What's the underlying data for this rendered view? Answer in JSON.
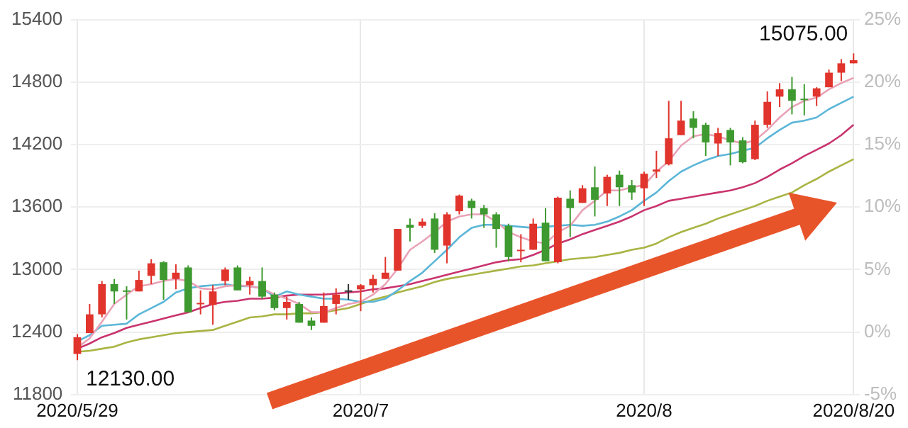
{
  "chart_data": {
    "type": "candlestick",
    "categories": [
      "2020/5/29",
      null,
      null,
      null,
      null,
      null,
      null,
      null,
      null,
      null,
      null,
      null,
      null,
      null,
      null,
      null,
      null,
      null,
      null,
      null,
      null,
      null,
      null,
      "2020/7",
      null,
      null,
      null,
      null,
      null,
      null,
      null,
      null,
      null,
      null,
      null,
      null,
      null,
      null,
      null,
      null,
      null,
      null,
      null,
      null,
      null,
      null,
      "2020/8",
      null,
      null,
      null,
      null,
      null,
      null,
      null,
      null,
      null,
      null,
      null,
      null,
      null,
      null,
      null,
      null,
      "2020/8/20"
    ],
    "ohlc": [
      [
        12190,
        12380,
        12130,
        12350
      ],
      [
        12390,
        12670,
        12390,
        12570
      ],
      [
        12570,
        12890,
        12540,
        12860
      ],
      [
        12860,
        12910,
        12670,
        12790
      ],
      [
        12800,
        12840,
        12520,
        12790
      ],
      [
        12790,
        12990,
        12790,
        12900
      ],
      [
        12940,
        13100,
        12860,
        13060
      ],
      [
        13070,
        13080,
        12710,
        12900
      ],
      [
        12910,
        13050,
        12810,
        12970
      ],
      [
        13020,
        13040,
        12590,
        12590
      ],
      [
        12670,
        12800,
        12570,
        12680
      ],
      [
        12660,
        12850,
        12470,
        12790
      ],
      [
        12890,
        13020,
        12850,
        13000
      ],
      [
        13020,
        13040,
        12800,
        12800
      ],
      [
        12850,
        12930,
        12760,
        12890
      ],
      [
        12890,
        13020,
        12720,
        12740
      ],
      [
        12760,
        12780,
        12610,
        12630
      ],
      [
        12630,
        12740,
        12520,
        12690
      ],
      [
        12670,
        12690,
        12490,
        12490
      ],
      [
        12510,
        12540,
        12420,
        12460
      ],
      [
        12490,
        12780,
        12490,
        12650
      ],
      [
        12670,
        12820,
        12570,
        12760
      ],
      [
        12800,
        12860,
        12710,
        12800
      ],
      [
        12810,
        12860,
        12600,
        12850
      ],
      [
        12850,
        12950,
        12780,
        12910
      ],
      [
        12910,
        13120,
        12910,
        12970
      ],
      [
        12990,
        13390,
        12990,
        13390
      ],
      [
        13430,
        13490,
        13270,
        13400
      ],
      [
        13420,
        13490,
        13400,
        13460
      ],
      [
        13490,
        13540,
        13160,
        13190
      ],
      [
        13230,
        13550,
        13060,
        13530
      ],
      [
        13560,
        13720,
        13530,
        13710
      ],
      [
        13660,
        13680,
        13490,
        13590
      ],
      [
        13590,
        13620,
        13400,
        13530
      ],
      [
        13530,
        13550,
        13210,
        13390
      ],
      [
        13420,
        13440,
        13080,
        13120
      ],
      [
        13180,
        13340,
        13070,
        13190
      ],
      [
        13190,
        13490,
        13190,
        13440
      ],
      [
        13450,
        13590,
        13080,
        13080
      ],
      [
        13070,
        13700,
        13060,
        13690
      ],
      [
        13680,
        13760,
        13310,
        13590
      ],
      [
        13640,
        13810,
        13640,
        13780
      ],
      [
        13790,
        13990,
        13510,
        13670
      ],
      [
        13730,
        13910,
        13610,
        13890
      ],
      [
        13910,
        13950,
        13610,
        13790
      ],
      [
        13810,
        13860,
        13670,
        13740
      ],
      [
        13780,
        13940,
        13610,
        13920
      ],
      [
        13940,
        14140,
        13880,
        13960
      ],
      [
        14010,
        14620,
        14000,
        14260
      ],
      [
        14290,
        14620,
        14290,
        14430
      ],
      [
        14450,
        14520,
        14260,
        14360
      ],
      [
        14390,
        14410,
        14090,
        14220
      ],
      [
        14210,
        14360,
        14090,
        14310
      ],
      [
        14340,
        14360,
        14000,
        14220
      ],
      [
        14240,
        14270,
        14020,
        14030
      ],
      [
        14060,
        14430,
        14050,
        14390
      ],
      [
        14390,
        14710,
        14360,
        14610
      ],
      [
        14660,
        14790,
        14560,
        14730
      ],
      [
        14730,
        14850,
        14490,
        14620
      ],
      [
        14640,
        14780,
        14480,
        14630
      ],
      [
        14660,
        14750,
        14570,
        14740
      ],
      [
        14750,
        14920,
        14750,
        14890
      ],
      [
        14890,
        15020,
        14810,
        14980
      ],
      [
        14980,
        15075,
        14980,
        15010
      ]
    ],
    "colors": [
      "#e0342c",
      "#e0342c",
      "#e0342c",
      "#3e9a30",
      "#3e9a30",
      "#e0342c",
      "#e0342c",
      "#3e9a30",
      "#e0342c",
      "#3e9a30",
      "#e0342c",
      "#e0342c",
      "#e0342c",
      "#3e9a30",
      "#e0342c",
      "#3e9a30",
      "#3e9a30",
      "#e0342c",
      "#3e9a30",
      "#3e9a30",
      "#e0342c",
      "#e0342c",
      "#333333",
      "#e0342c",
      "#e0342c",
      "#e0342c",
      "#e0342c",
      "#3e9a30",
      "#e0342c",
      "#3e9a30",
      "#e0342c",
      "#e0342c",
      "#3e9a30",
      "#3e9a30",
      "#3e9a30",
      "#3e9a30",
      "#e0342c",
      "#e0342c",
      "#3e9a30",
      "#e0342c",
      "#3e9a30",
      "#e0342c",
      "#3e9a30",
      "#e0342c",
      "#3e9a30",
      "#3e9a30",
      "#e0342c",
      "#e0342c",
      "#e0342c",
      "#e0342c",
      "#3e9a30",
      "#3e9a30",
      "#e0342c",
      "#3e9a30",
      "#3e9a30",
      "#e0342c",
      "#e0342c",
      "#e0342c",
      "#3e9a30",
      "#3e9a30",
      "#e0342c",
      "#e0342c",
      "#e0342c",
      "#e0342c"
    ],
    "series": [
      {
        "type": "line",
        "color": "#e9a3b6",
        "values": [
          12250,
          12340,
          12500,
          12670,
          12760,
          12840,
          12860,
          12890,
          12910,
          12890,
          12820,
          12810,
          12840,
          12850,
          12840,
          12820,
          12760,
          12720,
          12670,
          12590,
          12590,
          12630,
          12670,
          12690,
          12760,
          12860,
          13010,
          13190,
          13270,
          13360,
          13460,
          13510,
          13530,
          13530,
          13460,
          13360,
          13310,
          13270,
          13250,
          13360,
          13420,
          13570,
          13660,
          13760,
          13760,
          13790,
          13810,
          13940,
          14040,
          14190,
          14280,
          14300,
          14280,
          14240,
          14210,
          14240,
          14340,
          14460,
          14560,
          14620,
          14650,
          14730,
          14790,
          14840
        ]
      },
      {
        "type": "line",
        "color": "#5cb6d8",
        "values": [
          12310,
          12370,
          12460,
          12470,
          12480,
          12570,
          12630,
          12690,
          12780,
          12820,
          12840,
          12850,
          12860,
          12840,
          12840,
          12820,
          12740,
          12790,
          12760,
          12740,
          12720,
          12720,
          12710,
          12690,
          12690,
          12720,
          12800,
          12890,
          12970,
          13080,
          13190,
          13310,
          13400,
          13430,
          13430,
          13420,
          13410,
          13400,
          13410,
          13420,
          13430,
          13420,
          13430,
          13460,
          13510,
          13570,
          13660,
          13740,
          13850,
          13940,
          14000,
          14050,
          14090,
          14110,
          14140,
          14170,
          14260,
          14340,
          14410,
          14430,
          14460,
          14540,
          14600,
          14660
        ]
      },
      {
        "type": "line",
        "color": "#c9346e",
        "values": [
          12240,
          12290,
          12350,
          12390,
          12440,
          12470,
          12500,
          12530,
          12560,
          12590,
          12630,
          12670,
          12690,
          12700,
          12720,
          12720,
          12730,
          12750,
          12760,
          12760,
          12760,
          12770,
          12780,
          12790,
          12810,
          12820,
          12840,
          12860,
          12890,
          12920,
          12950,
          12980,
          13010,
          13040,
          13070,
          13090,
          13100,
          13140,
          13190,
          13250,
          13290,
          13340,
          13380,
          13420,
          13460,
          13510,
          13570,
          13610,
          13660,
          13680,
          13700,
          13720,
          13740,
          13760,
          13790,
          13830,
          13890,
          13960,
          14020,
          14090,
          14150,
          14210,
          14290,
          14390
        ]
      },
      {
        "type": "line",
        "color": "#a9b443",
        "values": [
          12210,
          12220,
          12240,
          12260,
          12300,
          12330,
          12350,
          12370,
          12390,
          12400,
          12410,
          12420,
          12460,
          12500,
          12540,
          12550,
          12570,
          12570,
          12580,
          12580,
          12590,
          12610,
          12630,
          12670,
          12710,
          12740,
          12780,
          12810,
          12840,
          12880,
          12910,
          12930,
          12950,
          12970,
          12990,
          13010,
          13030,
          13040,
          13060,
          13080,
          13100,
          13110,
          13120,
          13140,
          13160,
          13190,
          13210,
          13250,
          13310,
          13360,
          13400,
          13440,
          13490,
          13530,
          13570,
          13610,
          13660,
          13700,
          13740,
          13810,
          13870,
          13940,
          14000,
          14060
        ]
      }
    ],
    "ylim": [
      11800,
      15400
    ],
    "yticks": [
      11800,
      12400,
      13000,
      13600,
      14200,
      14800,
      15400
    ],
    "y2lim": [
      -5,
      25
    ],
    "y2ticks": [
      {
        "value": -5,
        "label": "-5%"
      },
      {
        "value": 0,
        "label": "0%"
      },
      {
        "value": 5,
        "label": "5%"
      },
      {
        "value": 10,
        "label": "10%"
      },
      {
        "value": 15,
        "label": "15%"
      },
      {
        "value": 20,
        "label": "20%"
      },
      {
        "value": 25,
        "label": "25%"
      }
    ],
    "grid": true,
    "marker": "none",
    "annotations": [
      {
        "text": "15075.00",
        "x": "2020/8/20",
        "y": 15075
      },
      {
        "text": "12130.00",
        "x": "2020/5/29",
        "y": 12130
      }
    ]
  }
}
